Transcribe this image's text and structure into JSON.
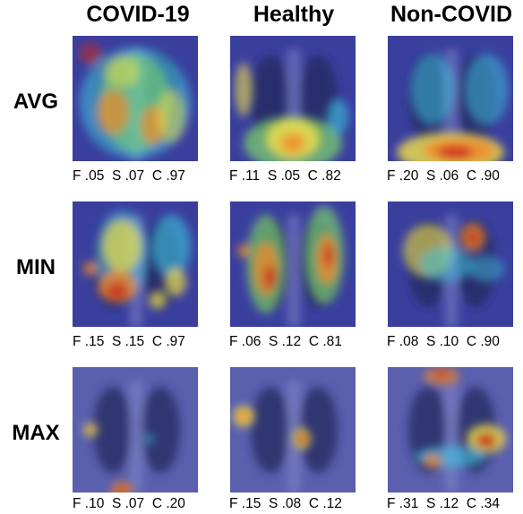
{
  "columns": [
    "COVID-19",
    "Healthy",
    "Non-COVID"
  ],
  "rows": [
    {
      "label": "AVG",
      "cells": [
        {
          "F": ".05",
          "S": ".07",
          "C": ".97"
        },
        {
          "F": ".11",
          "S": ".05",
          "C": ".82"
        },
        {
          "F": ".20",
          "S": ".06",
          "C": ".90"
        }
      ]
    },
    {
      "label": "MIN",
      "cells": [
        {
          "F": ".15",
          "S": ".15",
          "C": ".97"
        },
        {
          "F": ".06",
          "S": ".12",
          "C": ".81"
        },
        {
          "F": ".08",
          "S": ".10",
          "C": ".90"
        }
      ]
    },
    {
      "label": "MAX",
      "cells": [
        {
          "F": ".10",
          "S": ".07",
          "C": ".20"
        },
        {
          "F": ".15",
          "S": ".08",
          "C": ".12"
        },
        {
          "F": ".31",
          "S": ".12",
          "C": ".34"
        }
      ]
    }
  ],
  "metric_letters": {
    "F": "F",
    "S": "S",
    "C": "C"
  },
  "colors": {
    "base": "#3a3f9e",
    "cool": "#2d4fd0",
    "cyan": "#3ec8e0",
    "green": "#7fd86a",
    "yellow": "#f2e24a",
    "orange": "#f28a2a",
    "red": "#c8281e"
  }
}
